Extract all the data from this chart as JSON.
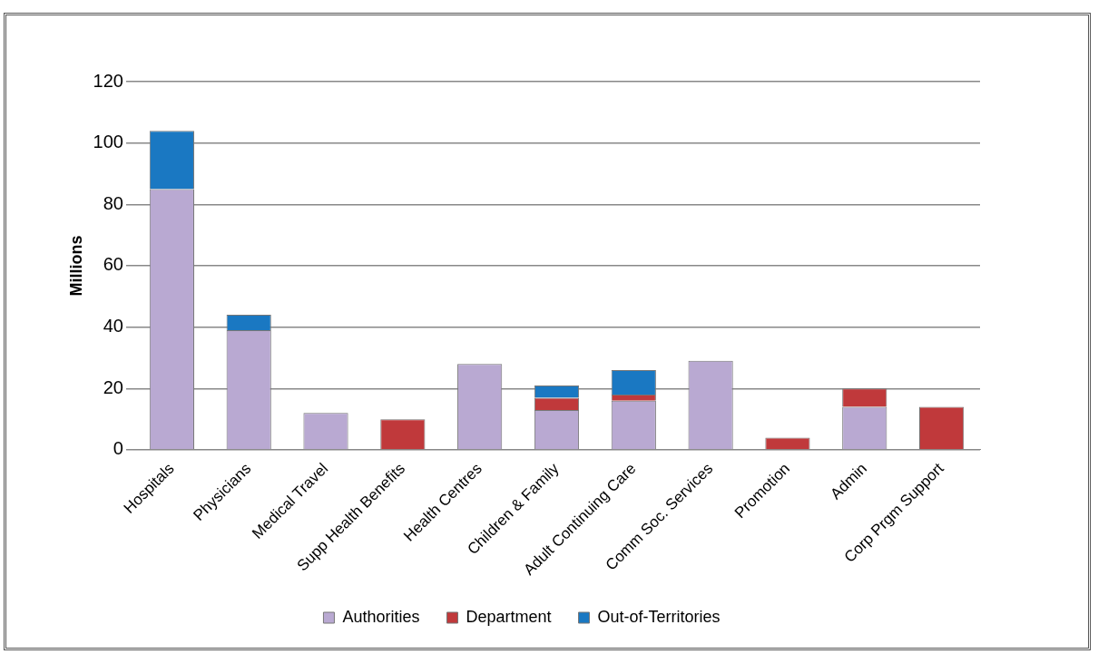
{
  "chart_data": {
    "type": "bar",
    "stacked": true,
    "ylabel": "Millions",
    "categories": [
      "Hospitals",
      "Physicians",
      "Medical Travel",
      "Supp Health Benefits",
      "Health Centres",
      "Children & Family",
      "Adult Continuing Care",
      "Comm Soc. Services",
      "Promotion",
      "Admin",
      "Corp Prgm Support"
    ],
    "series": [
      {
        "name": "Authorities",
        "color": "#b9a9d2",
        "values": [
          85,
          39,
          12,
          null,
          28,
          13,
          16,
          29,
          null,
          14,
          null
        ]
      },
      {
        "name": "Department",
        "color": "#c0393b",
        "values": [
          null,
          null,
          null,
          10,
          null,
          4,
          2,
          null,
          4,
          6,
          14
        ]
      },
      {
        "name": "Out-of-Territories",
        "color": "#1a78c2",
        "values": [
          19,
          5,
          null,
          null,
          null,
          4,
          8,
          null,
          null,
          null,
          null
        ]
      }
    ],
    "ylim": [
      0,
      120
    ],
    "yticks": [
      0,
      20,
      40,
      60,
      80,
      100,
      120
    ],
    "grid": "y",
    "legend": "bottom"
  }
}
